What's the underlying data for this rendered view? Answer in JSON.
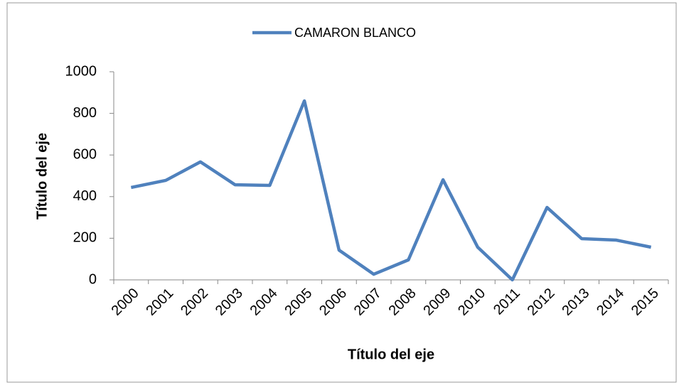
{
  "chart_data": {
    "type": "line",
    "x_label": "Título del eje",
    "y_label": "Título del eje",
    "categories": [
      "2000",
      "2001",
      "2002",
      "2003",
      "2004",
      "2005",
      "2006",
      "2007",
      "2008",
      "2009",
      "2010",
      "2011",
      "2012",
      "2013",
      "2014",
      "2015"
    ],
    "series": [
      {
        "name": "CAMARON BLANCO",
        "color": "#4f81bd",
        "values": [
          444,
          478,
          567,
          457,
          454,
          860,
          143,
          27,
          96,
          481,
          157,
          0,
          348,
          198,
          191,
          157
        ]
      }
    ],
    "ylim": [
      0,
      1000
    ],
    "yticks": [
      0,
      200,
      400,
      600,
      800,
      1000
    ],
    "grid": false,
    "legend": "top"
  }
}
